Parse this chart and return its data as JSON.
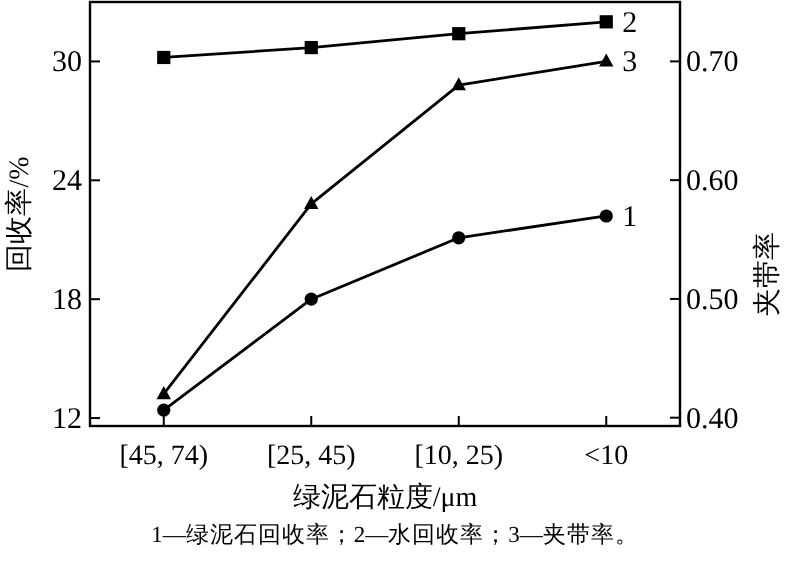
{
  "chart_data": {
    "type": "line",
    "xlabel": "绿泥石粒度/μm",
    "ylabel": "回收率/%",
    "y2label": "夹带率",
    "categories": [
      "[45, 74)",
      "[25, 45)",
      "[10, 25)",
      "<10"
    ],
    "series": [
      {
        "name": "1",
        "color": "#000000",
        "marker": "circle",
        "values": [
          12.4,
          18.0,
          21.1,
          22.2
        ]
      },
      {
        "name": "2",
        "color": "#000000",
        "marker": "square",
        "values": [
          30.2,
          30.7,
          31.4,
          32.0
        ]
      },
      {
        "name": "3",
        "color": "#000000",
        "marker": "triangle",
        "axis": "y2",
        "values": [
          0.42,
          0.58,
          0.68,
          0.7
        ]
      }
    ],
    "ylim": [
      11.6,
      33
    ],
    "yticks": [
      12,
      18,
      24,
      30
    ],
    "y2lim": [
      0.393,
      0.75
    ],
    "y2ticks": [
      {
        "value": 0.4,
        "label": "0.40"
      },
      {
        "value": 0.5,
        "label": "0.50"
      },
      {
        "value": 0.6,
        "label": "0.60"
      },
      {
        "value": 0.7,
        "label": "0.70"
      }
    ],
    "grid": false,
    "line_style": "solid",
    "annotations": [
      "1—绿泥石回收率；2—水回收率；3—夹带率。"
    ]
  }
}
